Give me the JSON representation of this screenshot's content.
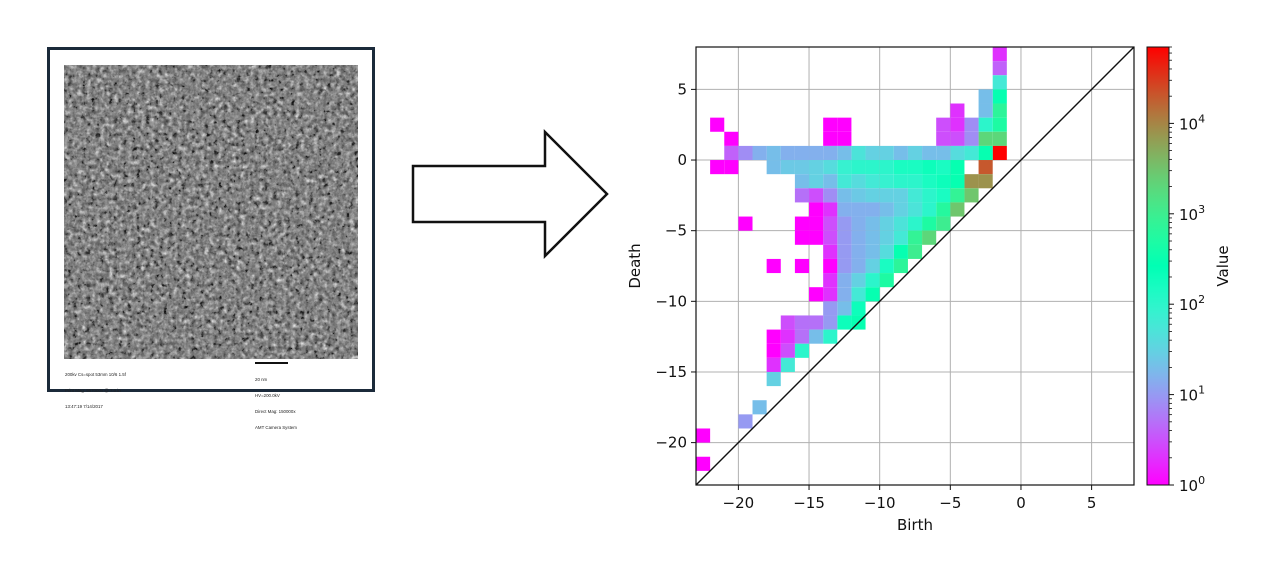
{
  "micrograph": {
    "caption_left": [
      "200kv Cs=spot 53mm 10/6 1.5f",
      "Print Mag: 957000x @ 7.0 in",
      "13:47:19 7/14/2017"
    ],
    "caption_right": [
      "20 nm",
      "HV=200.0kV",
      "Direct Mag: 150000x",
      "AMT Camera System"
    ]
  },
  "arrow": {
    "icon": "right-arrow-outline"
  },
  "chart_data": {
    "type": "heatmap",
    "title": "",
    "xlabel": "Birth",
    "ylabel": "Death",
    "xlim": [
      -23,
      8
    ],
    "ylim": [
      -23,
      8
    ],
    "bin_size": 1,
    "xticks": [
      -20,
      -15,
      -10,
      -5,
      0,
      5
    ],
    "yticks": [
      5,
      0,
      -5,
      -10,
      -15,
      -20
    ],
    "xtick_labels": [
      "−20",
      "−15",
      "−10",
      "−5",
      "0",
      "5"
    ],
    "ytick_labels": [
      "5",
      "0",
      "−5",
      "−10",
      "−15",
      "−20"
    ],
    "grid": true,
    "diagonal": true,
    "colorbar": {
      "label": "Value",
      "scale": "log",
      "range": [
        1,
        70000
      ],
      "ticks": [
        1,
        10,
        100,
        1000,
        10000
      ],
      "tick_labels": [
        {
          "base": "10",
          "exp": "0"
        },
        {
          "base": "10",
          "exp": "1"
        },
        {
          "base": "10",
          "exp": "2"
        },
        {
          "base": "10",
          "exp": "3"
        },
        {
          "base": "10",
          "exp": "4"
        }
      ],
      "colormap": "rainbow"
    },
    "cells": [
      [
        -2,
        7,
        2
      ],
      [
        -2,
        6,
        4
      ],
      [
        -2,
        5,
        60
      ],
      [
        -2,
        4,
        300
      ],
      [
        -2,
        3,
        700
      ],
      [
        -2,
        2,
        500
      ],
      [
        -2,
        1,
        2000
      ],
      [
        -2,
        0,
        70000
      ],
      [
        -3,
        4,
        20
      ],
      [
        -3,
        3,
        20
      ],
      [
        -3,
        2,
        100
      ],
      [
        -3,
        1,
        2000
      ],
      [
        -3,
        0,
        300
      ],
      [
        -4,
        2,
        8
      ],
      [
        -4,
        1,
        8
      ],
      [
        -4,
        0,
        60
      ],
      [
        -5,
        3,
        2
      ],
      [
        -5,
        2,
        2
      ],
      [
        -5,
        1,
        3
      ],
      [
        -5,
        0,
        40
      ],
      [
        -6,
        2,
        3
      ],
      [
        -6,
        1,
        3
      ],
      [
        -6,
        0,
        20
      ],
      [
        -22,
        2,
        1
      ],
      [
        -21,
        1,
        1
      ],
      [
        -13,
        2,
        1
      ],
      [
        -14,
        2,
        1
      ],
      [
        -13,
        1,
        1
      ],
      [
        -14,
        1,
        1
      ],
      [
        -7,
        0,
        20
      ],
      [
        -8,
        0,
        30
      ],
      [
        -9,
        0,
        20
      ],
      [
        -10,
        0,
        30
      ],
      [
        -11,
        0,
        30
      ],
      [
        -12,
        0,
        50
      ],
      [
        -13,
        0,
        20
      ],
      [
        -14,
        0,
        15
      ],
      [
        -15,
        0,
        15
      ],
      [
        -16,
        0,
        15
      ],
      [
        -17,
        0,
        15
      ],
      [
        -18,
        0,
        20
      ],
      [
        -19,
        0,
        15
      ],
      [
        -20,
        0,
        8
      ],
      [
        -21,
        0,
        4
      ],
      [
        -21,
        -1,
        1
      ],
      [
        -22,
        -1,
        1
      ],
      [
        -3,
        -1,
        20000
      ],
      [
        -3,
        -2,
        8000
      ],
      [
        -4,
        -2,
        8000
      ],
      [
        -4,
        -3,
        3000
      ],
      [
        -5,
        -1,
        300
      ],
      [
        -5,
        -2,
        300
      ],
      [
        -6,
        -1,
        150
      ],
      [
        -6,
        -2,
        200
      ],
      [
        -7,
        -1,
        200
      ],
      [
        -7,
        -2,
        150
      ],
      [
        -8,
        -1,
        150
      ],
      [
        -8,
        -2,
        100
      ],
      [
        -9,
        -1,
        150
      ],
      [
        -9,
        -2,
        100
      ],
      [
        -10,
        -1,
        100
      ],
      [
        -10,
        -2,
        80
      ],
      [
        -11,
        -1,
        100
      ],
      [
        -11,
        -2,
        60
      ],
      [
        -12,
        -1,
        100
      ],
      [
        -12,
        -2,
        40
      ],
      [
        -13,
        -1,
        80
      ],
      [
        -13,
        -2,
        60
      ],
      [
        -14,
        -1,
        40
      ],
      [
        -14,
        -2,
        20
      ],
      [
        -15,
        -1,
        30
      ],
      [
        -15,
        -2,
        30
      ],
      [
        -16,
        -1,
        25
      ],
      [
        -16,
        -2,
        20
      ],
      [
        -17,
        -1,
        25
      ],
      [
        -18,
        -1,
        20
      ],
      [
        -15,
        -3,
        3
      ],
      [
        -16,
        -3,
        5
      ],
      [
        -14,
        -3,
        8
      ],
      [
        -5,
        -3,
        800
      ],
      [
        -6,
        -3,
        150
      ],
      [
        -7,
        -3,
        100
      ],
      [
        -8,
        -3,
        60
      ],
      [
        -9,
        -3,
        30
      ],
      [
        -10,
        -3,
        30
      ],
      [
        -11,
        -3,
        30
      ],
      [
        -12,
        -3,
        25
      ],
      [
        -13,
        -3,
        20
      ],
      [
        -5,
        -4,
        3000
      ],
      [
        -6,
        -4,
        600
      ],
      [
        -7,
        -4,
        100
      ],
      [
        -8,
        -4,
        50
      ],
      [
        -9,
        -4,
        30
      ],
      [
        -10,
        -4,
        20
      ],
      [
        -11,
        -4,
        15
      ],
      [
        -12,
        -4,
        15
      ],
      [
        -13,
        -4,
        15
      ],
      [
        -14,
        -4,
        2
      ],
      [
        -15,
        -4,
        1
      ],
      [
        -6,
        -5,
        1000
      ],
      [
        -7,
        -5,
        500
      ],
      [
        -8,
        -5,
        100
      ],
      [
        -9,
        -5,
        50
      ],
      [
        -10,
        -5,
        30
      ],
      [
        -11,
        -5,
        20
      ],
      [
        -12,
        -5,
        15
      ],
      [
        -13,
        -5,
        10
      ],
      [
        -14,
        -5,
        3
      ],
      [
        -16,
        -5,
        1
      ],
      [
        -15,
        -5,
        1
      ],
      [
        -20,
        -5,
        1
      ],
      [
        -7,
        -6,
        2000
      ],
      [
        -8,
        -6,
        800
      ],
      [
        -9,
        -6,
        60
      ],
      [
        -10,
        -6,
        30
      ],
      [
        -11,
        -6,
        20
      ],
      [
        -12,
        -6,
        15
      ],
      [
        -13,
        -6,
        10
      ],
      [
        -14,
        -6,
        3
      ],
      [
        -16,
        -6,
        1
      ],
      [
        -15,
        -6,
        1
      ],
      [
        -8,
        -7,
        1000
      ],
      [
        -9,
        -7,
        300
      ],
      [
        -10,
        -7,
        40
      ],
      [
        -11,
        -7,
        20
      ],
      [
        -12,
        -7,
        15
      ],
      [
        -13,
        -7,
        10
      ],
      [
        -14,
        -7,
        2
      ],
      [
        -9,
        -8,
        700
      ],
      [
        -10,
        -8,
        150
      ],
      [
        -11,
        -8,
        30
      ],
      [
        -12,
        -8,
        15
      ],
      [
        -13,
        -8,
        10
      ],
      [
        -14,
        -8,
        1
      ],
      [
        -16,
        -8,
        1
      ],
      [
        -18,
        -8,
        1
      ],
      [
        -10,
        -9,
        500
      ],
      [
        -11,
        -9,
        100
      ],
      [
        -12,
        -9,
        30
      ],
      [
        -13,
        -9,
        15
      ],
      [
        -14,
        -9,
        2
      ],
      [
        -11,
        -10,
        300
      ],
      [
        -12,
        -10,
        60
      ],
      [
        -13,
        -10,
        15
      ],
      [
        -14,
        -10,
        2
      ],
      [
        -15,
        -10,
        1
      ],
      [
        -12,
        -11,
        200
      ],
      [
        -13,
        -11,
        20
      ],
      [
        -14,
        -11,
        10
      ],
      [
        -12,
        -12,
        300
      ],
      [
        -13,
        -12,
        200
      ],
      [
        -14,
        -12,
        10
      ],
      [
        -15,
        -12,
        5
      ],
      [
        -16,
        -12,
        5
      ],
      [
        -17,
        -12,
        3
      ],
      [
        -14,
        -13,
        100
      ],
      [
        -15,
        -13,
        20
      ],
      [
        -16,
        -13,
        5
      ],
      [
        -17,
        -13,
        2
      ],
      [
        -18,
        -13,
        1
      ],
      [
        -16,
        -14,
        100
      ],
      [
        -17,
        -14,
        3
      ],
      [
        -18,
        -14,
        1
      ],
      [
        -17,
        -15,
        60
      ],
      [
        -18,
        -15,
        2
      ],
      [
        -18,
        -16,
        30
      ],
      [
        -19,
        -18,
        20
      ],
      [
        -20,
        -19,
        10
      ],
      [
        -23,
        -20,
        1
      ],
      [
        -23,
        -22,
        1
      ]
    ]
  }
}
